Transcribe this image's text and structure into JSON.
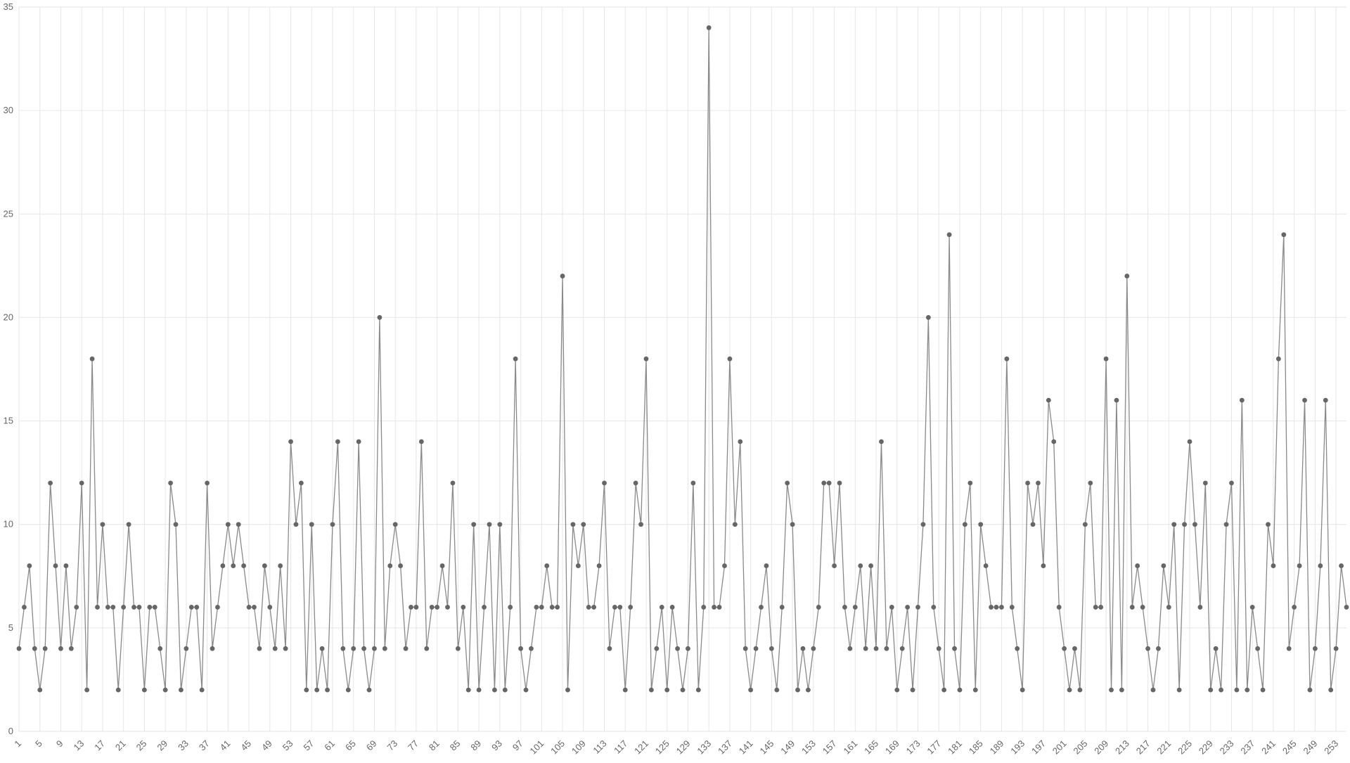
{
  "chart_data": {
    "type": "line",
    "title": "",
    "xlabel": "",
    "ylabel": "",
    "ylim": [
      0,
      35
    ],
    "y_ticks": [
      "0",
      "5",
      "10",
      "15",
      "20",
      "25",
      "30",
      "35"
    ],
    "x_tick_labels": [
      "1",
      "5",
      "9",
      "13",
      "17",
      "21",
      "25",
      "29",
      "33",
      "37",
      "41",
      "45",
      "49",
      "53",
      "57",
      "61",
      "65",
      "69",
      "73",
      "77",
      "81",
      "85",
      "89",
      "93",
      "97",
      "101",
      "105",
      "109",
      "113",
      "117",
      "121",
      "125",
      "129",
      "133",
      "137",
      "141",
      "145",
      "149",
      "153",
      "157",
      "161",
      "165",
      "169",
      "173",
      "177",
      "181",
      "185",
      "189",
      "193",
      "197",
      "201",
      "205",
      "209",
      "213",
      "217",
      "221",
      "225",
      "229",
      "233",
      "237",
      "241",
      "245",
      "249",
      "253"
    ],
    "grid": true,
    "legend": "none",
    "colors": {
      "line": "#8a8a8a",
      "point": "#666666",
      "grid": "#e6e6e6",
      "tick_text": "#666666"
    },
    "series": [
      {
        "values": [
          4,
          6,
          8,
          4,
          2,
          4,
          12,
          8,
          4,
          8,
          4,
          6,
          12,
          2,
          18,
          6,
          10,
          6,
          6,
          2,
          6,
          10,
          6,
          6,
          2,
          6,
          6,
          4,
          2,
          12,
          10,
          2,
          4,
          6,
          6,
          2,
          12,
          4,
          6,
          8,
          10,
          8,
          10,
          8,
          6,
          6,
          4,
          8,
          6,
          4,
          8,
          4,
          14,
          10,
          12,
          2,
          10,
          2,
          4,
          2,
          10,
          14,
          4,
          2,
          4,
          14,
          4,
          2,
          4,
          20,
          4,
          8,
          10,
          8,
          4,
          6,
          6,
          14,
          4,
          6,
          6,
          8,
          6,
          12,
          4,
          6,
          2,
          10,
          2,
          6,
          10,
          2,
          10,
          2,
          6,
          18,
          4,
          2,
          4,
          6,
          6,
          8,
          6,
          6,
          22,
          2,
          10,
          8,
          10,
          6,
          6,
          8,
          12,
          4,
          6,
          6,
          2,
          6,
          12,
          10,
          18,
          2,
          4,
          6,
          2,
          6,
          4,
          2,
          4,
          12,
          2,
          6,
          34,
          6,
          6,
          8,
          18,
          10,
          14,
          4,
          2,
          4,
          6,
          8,
          4,
          2,
          6,
          12,
          10,
          2,
          4,
          2,
          4,
          6,
          12,
          12,
          8,
          12,
          6,
          4,
          6,
          8,
          4,
          8,
          4,
          14,
          4,
          6,
          2,
          4,
          6,
          2,
          6,
          10,
          20,
          6,
          4,
          2,
          24,
          4,
          2,
          10,
          12,
          2,
          10,
          8,
          6,
          6,
          6,
          18,
          6,
          4,
          2,
          12,
          10,
          12,
          8,
          16,
          14,
          6,
          4,
          2,
          4,
          2,
          10,
          12,
          6,
          6,
          18,
          2,
          16,
          2,
          22,
          6,
          8,
          6,
          4,
          2,
          4,
          8,
          6,
          10,
          2,
          10,
          14,
          10,
          6,
          12,
          2,
          4,
          2,
          10,
          12,
          2,
          16,
          2,
          6,
          4,
          2,
          10,
          8,
          18,
          24,
          4,
          6,
          8,
          16,
          2,
          4,
          8,
          16,
          2,
          4,
          8,
          6
        ]
      }
    ]
  }
}
